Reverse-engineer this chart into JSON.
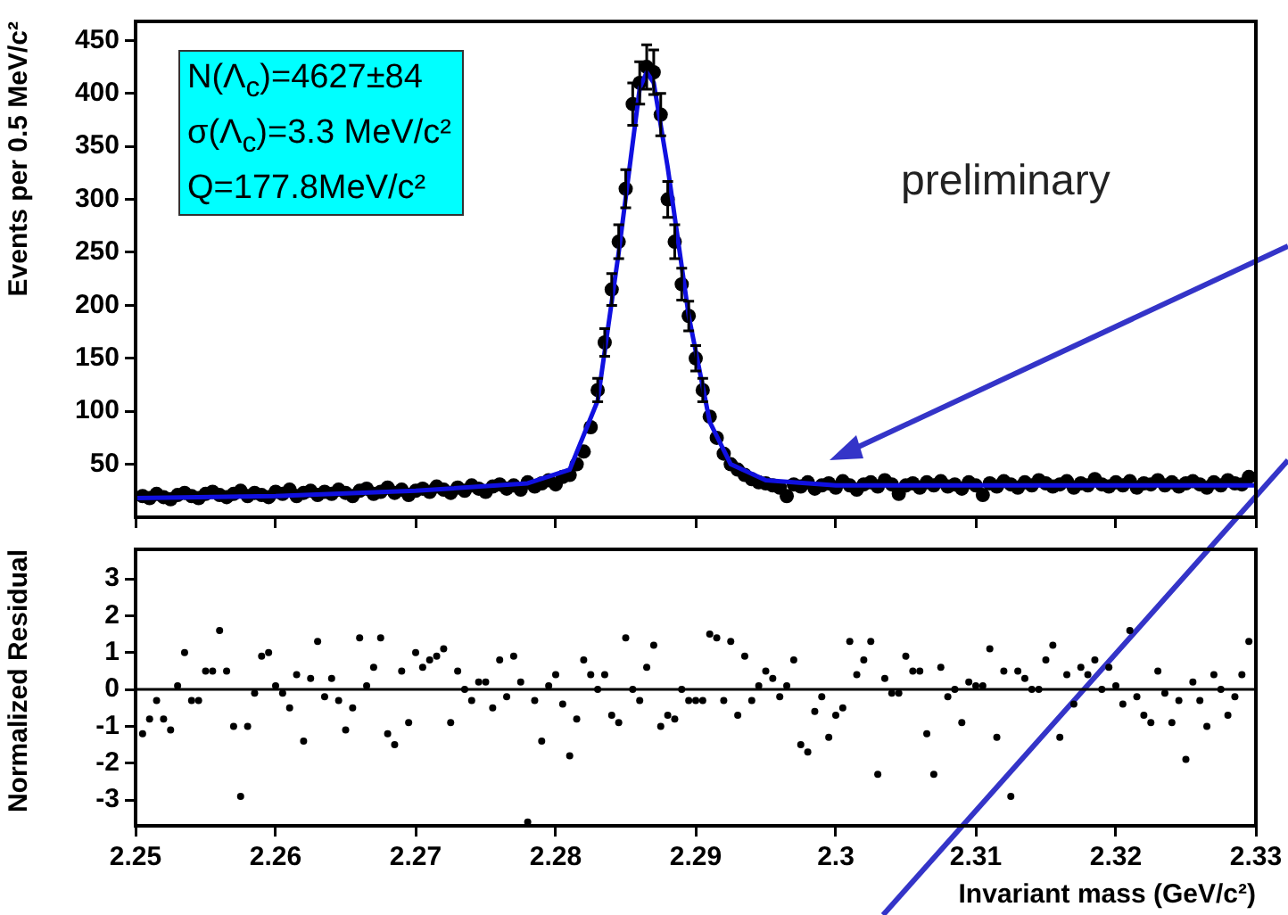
{
  "chart_data": [
    {
      "type": "scatter",
      "ylabel": "Events per 0.5 MeV/c²",
      "xlim": [
        2.25,
        2.33
      ],
      "xticks": [
        {
          "value": 2.25,
          "label": null
        },
        {
          "value": 2.26,
          "label": null
        },
        {
          "value": 2.27,
          "label": null
        },
        {
          "value": 2.28,
          "label": null
        },
        {
          "value": 2.29,
          "label": null
        },
        {
          "value": 2.3,
          "label": null
        },
        {
          "value": 2.31,
          "label": null
        },
        {
          "value": 2.32,
          "label": null
        },
        {
          "value": 2.33,
          "label": null
        }
      ],
      "ylim": [
        0,
        468
      ],
      "yticks": [
        50,
        100,
        150,
        200,
        250,
        300,
        350,
        400,
        450
      ],
      "tick_labels": "y",
      "grid": false,
      "legend": false,
      "annotations": [
        "N(Λ$_{c}$)=4627±84",
        "σ(Λ$_{c}$)=3.3 MeV/c²",
        "Q=177.8MeV/c²",
        "preliminary"
      ],
      "series": [
        {
          "marker": "circle",
          "color": "#000000",
          "x": [
            2.2505,
            2.251,
            2.2515,
            2.252,
            2.2525,
            2.253,
            2.2535,
            2.254,
            2.2545,
            2.255,
            2.2555,
            2.256,
            2.2565,
            2.257,
            2.2575,
            2.258,
            2.2585,
            2.259,
            2.2595,
            2.26,
            2.2605,
            2.261,
            2.2615,
            2.262,
            2.2625,
            2.263,
            2.2635,
            2.264,
            2.2645,
            2.265,
            2.2655,
            2.266,
            2.2665,
            2.267,
            2.2675,
            2.268,
            2.2685,
            2.269,
            2.2695,
            2.27,
            2.2705,
            2.271,
            2.2715,
            2.272,
            2.2725,
            2.273,
            2.2735,
            2.274,
            2.2745,
            2.275,
            2.2755,
            2.276,
            2.2765,
            2.277,
            2.2775,
            2.278,
            2.2785,
            2.279,
            2.2795,
            2.28,
            2.2805,
            2.281,
            2.2815,
            2.282,
            2.2825,
            2.283,
            2.2835,
            2.284,
            2.2845,
            2.285,
            2.2855,
            2.286,
            2.2865,
            2.287,
            2.2875,
            2.288,
            2.2885,
            2.289,
            2.2895,
            2.29,
            2.2905,
            2.291,
            2.2915,
            2.292,
            2.2925,
            2.293,
            2.2935,
            2.294,
            2.2945,
            2.295,
            2.2955,
            2.296,
            2.2965,
            2.297,
            2.2975,
            2.298,
            2.2985,
            2.299,
            2.2995,
            2.3,
            2.3005,
            2.301,
            2.3015,
            2.302,
            2.3025,
            2.303,
            2.3035,
            2.304,
            2.3045,
            2.305,
            2.3055,
            2.306,
            2.3065,
            2.307,
            2.3075,
            2.308,
            2.3085,
            2.309,
            2.3095,
            2.31,
            2.3105,
            2.311,
            2.3115,
            2.312,
            2.3125,
            2.313,
            2.3135,
            2.314,
            2.3145,
            2.315,
            2.3155,
            2.316,
            2.3165,
            2.317,
            2.3175,
            2.318,
            2.3185,
            2.319,
            2.3195,
            2.32,
            2.3205,
            2.321,
            2.3215,
            2.322,
            2.3225,
            2.323,
            2.3235,
            2.324,
            2.3245,
            2.325,
            2.3255,
            2.326,
            2.3265,
            2.327,
            2.3275,
            2.328,
            2.3285,
            2.329,
            2.3295
          ],
          "values": [
            20,
            18,
            22,
            19,
            17,
            21,
            23,
            20,
            18,
            22,
            24,
            21,
            19,
            22,
            25,
            20,
            23,
            21,
            19,
            24,
            22,
            26,
            20,
            23,
            25,
            21,
            24,
            22,
            26,
            23,
            20,
            25,
            27,
            22,
            24,
            28,
            23,
            26,
            21,
            25,
            27,
            24,
            29,
            26,
            23,
            28,
            25,
            30,
            27,
            24,
            29,
            31,
            27,
            30,
            26,
            33,
            29,
            32,
            35,
            31,
            38,
            40,
            50,
            62,
            85,
            120,
            165,
            215,
            260,
            310,
            390,
            410,
            425,
            420,
            380,
            300,
            260,
            220,
            190,
            150,
            120,
            95,
            75,
            60,
            50,
            45,
            40,
            36,
            33,
            32,
            30,
            28,
            20,
            31,
            29,
            33,
            27,
            30,
            32,
            28,
            34,
            30,
            26,
            31,
            33,
            29,
            35,
            31,
            22,
            30,
            32,
            28,
            33,
            30,
            34,
            29,
            31,
            27,
            33,
            30,
            21,
            32,
            29,
            34,
            31,
            28,
            33,
            30,
            35,
            32,
            29,
            31,
            34,
            28,
            32,
            30,
            36,
            31,
            29,
            33,
            30,
            34,
            28,
            32,
            31,
            35,
            30,
            33,
            29,
            32,
            34,
            31,
            28,
            33,
            30,
            35,
            32,
            31,
            38
          ],
          "errors": [
            null,
            null,
            null,
            null,
            null,
            null,
            null,
            null,
            null,
            null,
            null,
            null,
            null,
            null,
            null,
            null,
            null,
            null,
            null,
            null,
            null,
            null,
            null,
            null,
            null,
            null,
            null,
            null,
            null,
            null,
            null,
            null,
            null,
            null,
            null,
            null,
            null,
            null,
            null,
            null,
            null,
            null,
            null,
            null,
            null,
            null,
            null,
            null,
            null,
            null,
            null,
            null,
            null,
            null,
            null,
            null,
            null,
            null,
            null,
            null,
            null,
            null,
            null,
            null,
            null,
            11,
            13,
            15,
            16,
            18,
            20,
            20,
            21,
            21,
            20,
            17,
            16,
            15,
            14,
            12,
            11,
            null,
            null,
            null,
            null,
            null,
            null,
            null,
            null,
            null,
            null,
            null,
            null,
            null,
            null,
            null,
            null,
            null,
            null,
            null,
            null,
            null,
            null,
            null,
            null,
            null,
            null,
            null,
            null,
            null,
            null,
            null,
            null,
            null,
            null,
            null,
            null,
            null,
            null,
            null,
            null,
            null,
            null,
            null,
            null,
            null,
            null,
            null,
            null,
            null,
            null,
            null,
            null,
            null,
            null,
            null,
            null,
            null,
            null,
            null,
            null,
            null,
            null,
            null,
            null,
            null,
            null,
            null,
            null,
            null,
            null,
            null,
            null,
            null,
            null,
            null,
            null,
            null,
            null
          ]
        },
        {
          "type": "line",
          "marker": "none",
          "color": "#1010e0",
          "x": [
            2.25,
            2.26,
            2.27,
            2.278,
            2.281,
            2.283,
            2.2845,
            2.286,
            2.2865,
            2.287,
            2.288,
            2.2895,
            2.291,
            2.2925,
            2.295,
            2.3,
            2.31,
            2.33
          ],
          "values": [
            18,
            20,
            25,
            32,
            45,
            110,
            250,
            405,
            420,
            410,
            330,
            190,
            90,
            50,
            35,
            30,
            30,
            30
          ]
        }
      ]
    },
    {
      "type": "scatter",
      "marker": "circle",
      "xlabel": "Invariant mass (GeV/c²)",
      "ylabel": "Normalized Residual",
      "xlim": [
        2.25,
        2.33
      ],
      "xticks": [
        2.25,
        2.26,
        2.27,
        2.28,
        2.29,
        2.3,
        2.31,
        2.32,
        2.33
      ],
      "ylim": [
        -3.7,
        3.8
      ],
      "yticks": [
        -3,
        -2,
        -1,
        0,
        1,
        2,
        3
      ],
      "grid": false,
      "legend": false,
      "ref_lines": [
        {
          "axis": "y",
          "value": 0,
          "color": "#000000"
        }
      ],
      "series": [
        {
          "color": "#000000",
          "x": [
            2.2505,
            2.251,
            2.2515,
            2.252,
            2.2525,
            2.253,
            2.2535,
            2.254,
            2.2545,
            2.255,
            2.2555,
            2.256,
            2.2565,
            2.257,
            2.2575,
            2.258,
            2.2585,
            2.259,
            2.2595,
            2.26,
            2.2605,
            2.261,
            2.2615,
            2.262,
            2.2625,
            2.263,
            2.2635,
            2.264,
            2.2645,
            2.265,
            2.2655,
            2.266,
            2.2665,
            2.267,
            2.2675,
            2.268,
            2.2685,
            2.269,
            2.2695,
            2.27,
            2.2705,
            2.271,
            2.2715,
            2.272,
            2.2725,
            2.273,
            2.2735,
            2.274,
            2.2745,
            2.275,
            2.2755,
            2.276,
            2.2765,
            2.277,
            2.2775,
            2.278,
            2.2785,
            2.279,
            2.2795,
            2.28,
            2.2805,
            2.281,
            2.2815,
            2.282,
            2.2825,
            2.283,
            2.2835,
            2.284,
            2.2845,
            2.285,
            2.2855,
            2.286,
            2.2865,
            2.287,
            2.2875,
            2.288,
            2.2885,
            2.289,
            2.2895,
            2.29,
            2.2905,
            2.291,
            2.2915,
            2.292,
            2.2925,
            2.293,
            2.2935,
            2.294,
            2.2945,
            2.295,
            2.2955,
            2.296,
            2.2965,
            2.297,
            2.2975,
            2.298,
            2.2985,
            2.299,
            2.2995,
            2.3,
            2.3005,
            2.301,
            2.3015,
            2.302,
            2.3025,
            2.303,
            2.3035,
            2.304,
            2.3045,
            2.305,
            2.3055,
            2.306,
            2.3065,
            2.307,
            2.3075,
            2.308,
            2.3085,
            2.309,
            2.3095,
            2.31,
            2.3105,
            2.311,
            2.3115,
            2.312,
            2.3125,
            2.313,
            2.3135,
            2.314,
            2.3145,
            2.315,
            2.3155,
            2.316,
            2.3165,
            2.317,
            2.3175,
            2.318,
            2.3185,
            2.319,
            2.3195,
            2.32,
            2.3205,
            2.321,
            2.3215,
            2.322,
            2.3225,
            2.323,
            2.3235,
            2.324,
            2.3245,
            2.325,
            2.3255,
            2.326,
            2.3265,
            2.327,
            2.3275,
            2.328,
            2.3285,
            2.329,
            2.3295
          ],
          "values": [
            -1.2,
            -0.8,
            -0.3,
            -0.8,
            -1.1,
            0.1,
            1.0,
            -0.3,
            -0.3,
            0.5,
            0.5,
            1.6,
            0.5,
            -1.0,
            -2.9,
            -1.0,
            -0.1,
            0.9,
            1.0,
            0.1,
            -0.1,
            -0.5,
            0.4,
            -1.4,
            0.3,
            1.3,
            -0.2,
            0.3,
            -0.3,
            -1.1,
            -0.5,
            1.4,
            0.1,
            0.6,
            1.4,
            -1.2,
            -1.5,
            0.5,
            -0.9,
            1.0,
            0.6,
            0.8,
            0.9,
            1.1,
            -0.9,
            0.5,
            0.0,
            -0.3,
            0.2,
            0.2,
            -0.5,
            0.8,
            -0.2,
            0.9,
            0.2,
            -3.6,
            -0.3,
            -1.4,
            0.1,
            0.4,
            -0.4,
            -1.8,
            -0.8,
            0.8,
            0.4,
            0.0,
            0.4,
            -0.7,
            -0.9,
            1.4,
            0.0,
            -0.3,
            0.6,
            1.2,
            -1.0,
            -0.7,
            -0.8,
            0.0,
            -0.3,
            -0.3,
            -0.3,
            1.5,
            1.4,
            -0.3,
            1.3,
            -0.7,
            0.9,
            -0.3,
            0.1,
            0.5,
            0.3,
            -0.2,
            0.1,
            0.8,
            -1.5,
            -1.7,
            -0.6,
            -0.2,
            -1.3,
            -0.7,
            -0.5,
            1.3,
            0.4,
            0.8,
            1.3,
            -2.3,
            0.3,
            -0.1,
            -0.1,
            0.9,
            0.5,
            0.5,
            -1.2,
            -2.3,
            0.6,
            -0.2,
            0.0,
            -0.9,
            0.2,
            0.1,
            0.1,
            1.1,
            -1.3,
            0.5,
            -2.9,
            0.5,
            0.3,
            0.0,
            0.0,
            0.8,
            1.2,
            -1.3,
            0.4,
            -0.4,
            0.6,
            0.4,
            0.8,
            0.0,
            0.6,
            0.1,
            -0.4,
            1.6,
            -0.2,
            -0.7,
            -0.9,
            0.5,
            -0.1,
            -0.9,
            -0.3,
            -1.9,
            0.2,
            -0.3,
            -1.0,
            0.4,
            0.0,
            -0.7,
            -0.2,
            0.4,
            1.3
          ]
        }
      ]
    }
  ]
}
